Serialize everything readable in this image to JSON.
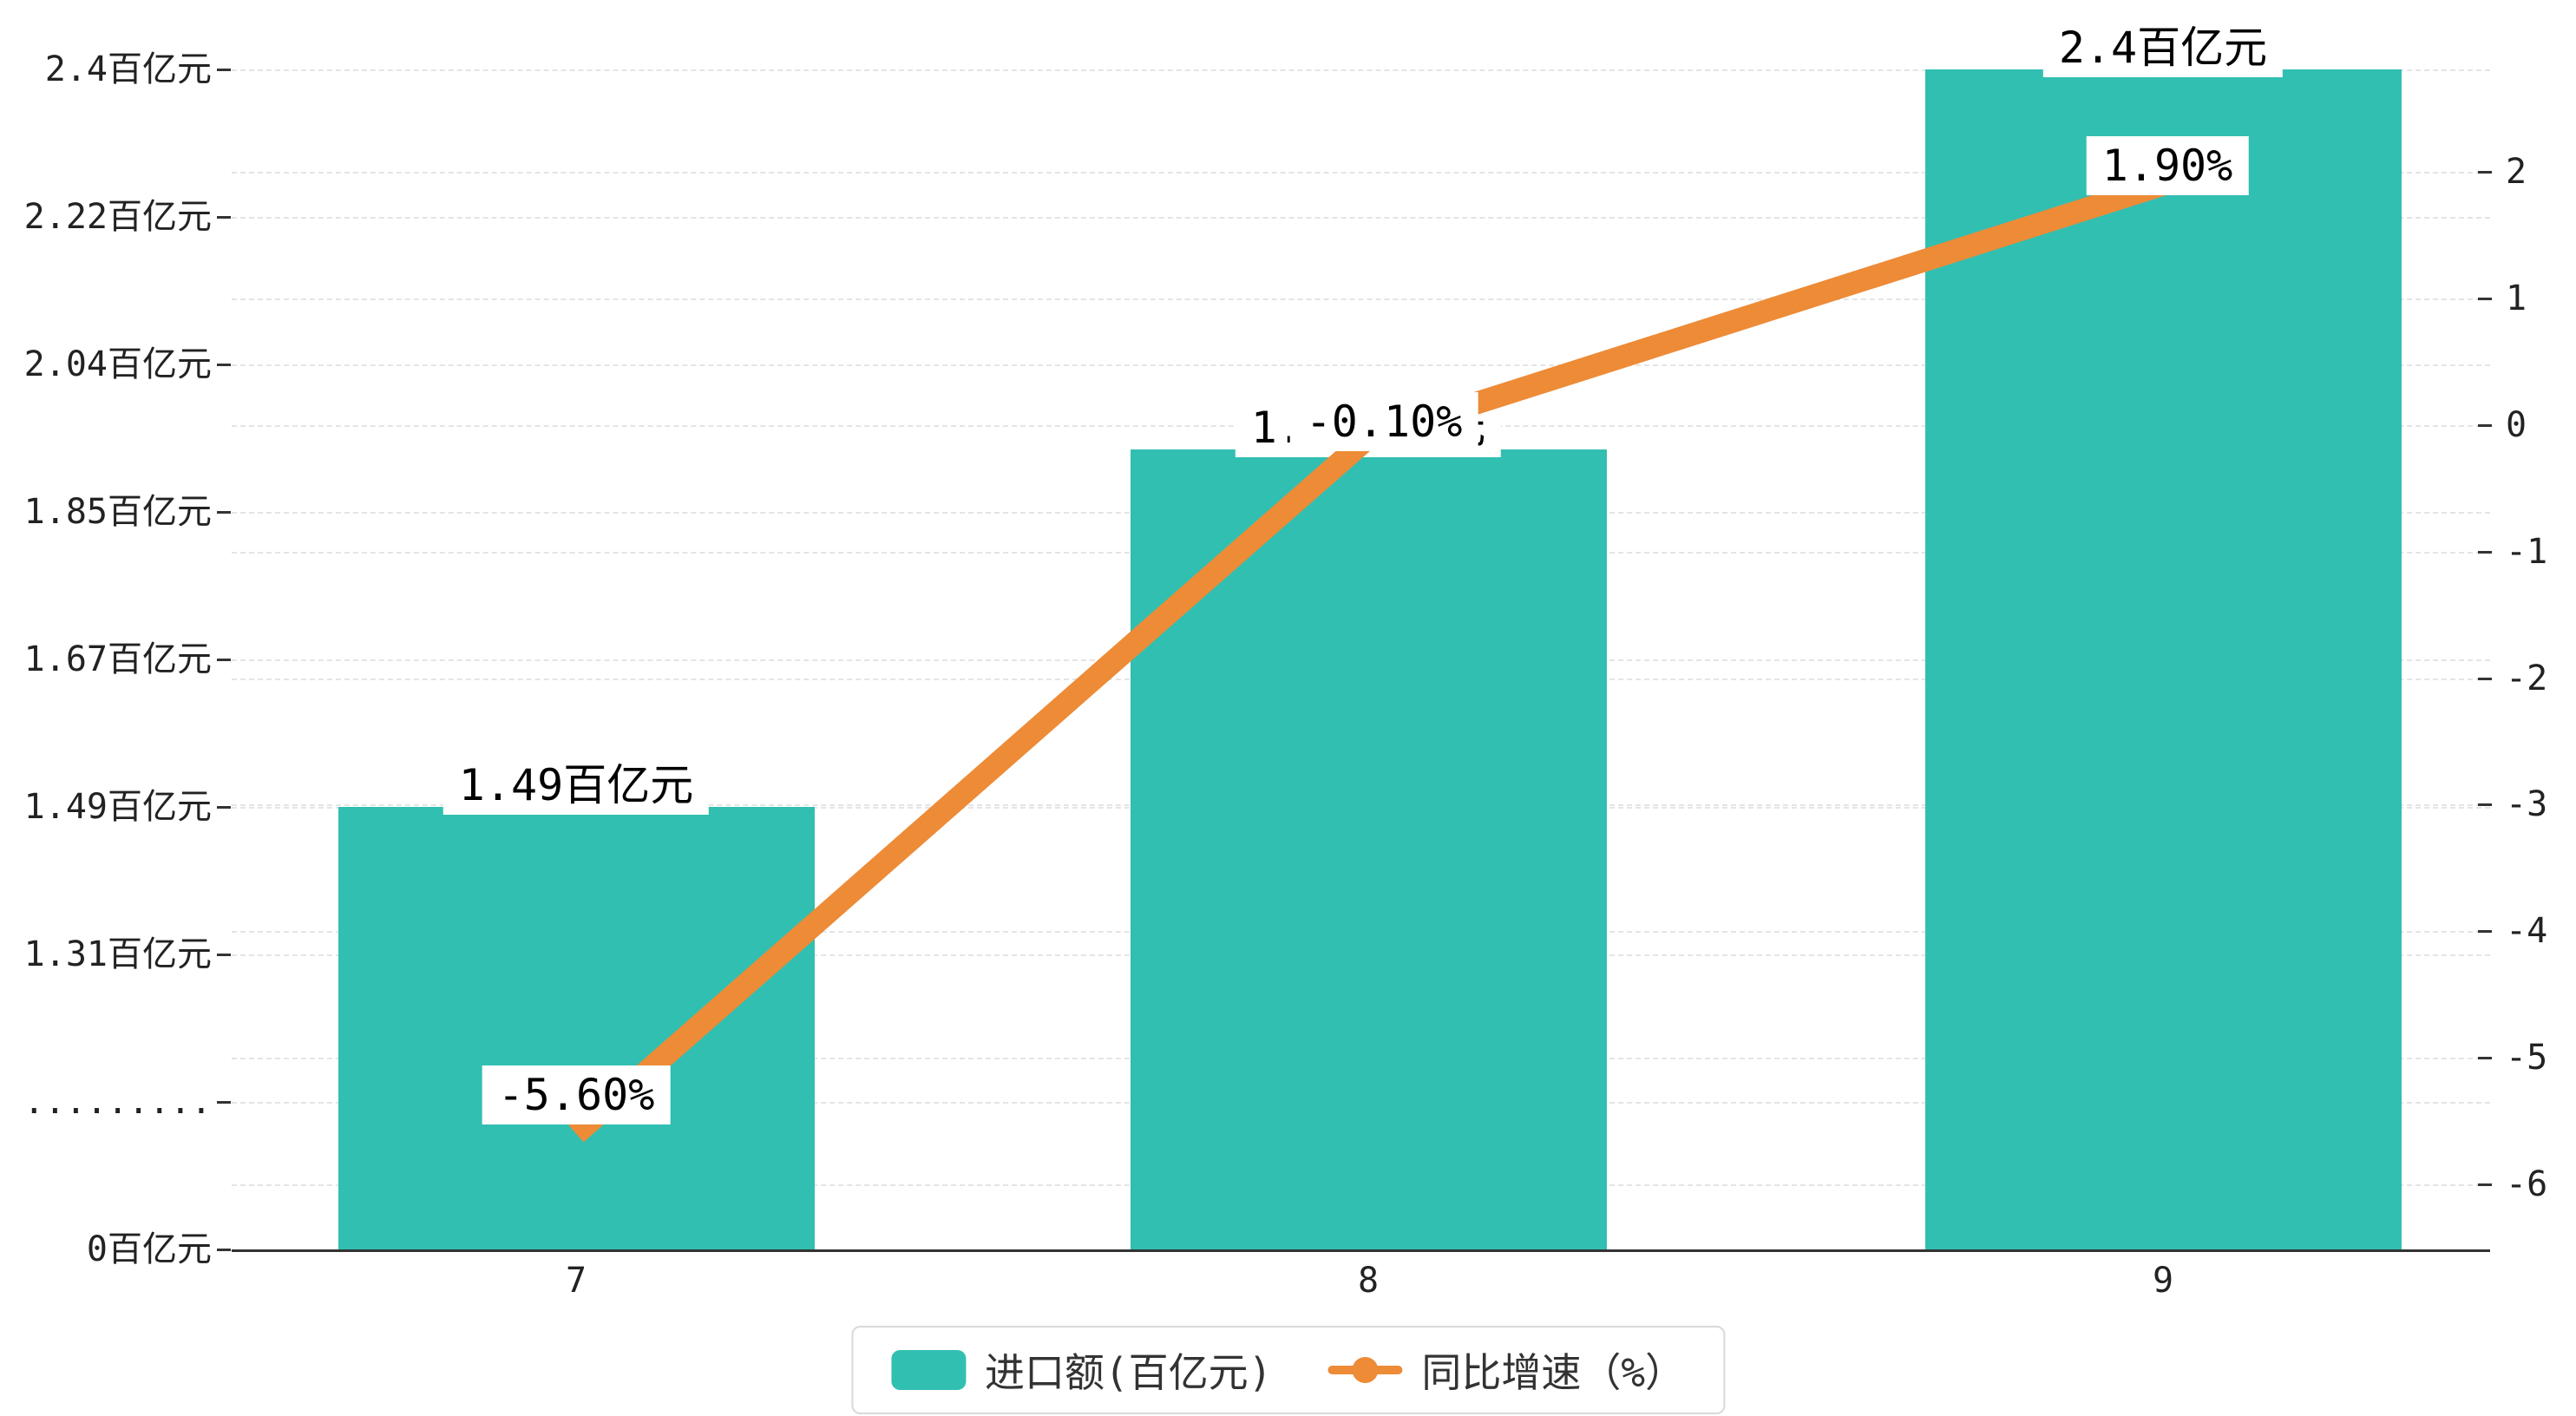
{
  "chart_data": {
    "type": "bar",
    "subtype": "bar+line-combo",
    "categories": [
      "7",
      "8",
      "9"
    ],
    "series": [
      {
        "name": "进口额(百亿元)",
        "type": "bar",
        "axis": "left",
        "color": "#31bfb1",
        "values": [
          1.49,
          1.93,
          2.4
        ],
        "data_labels": [
          "1.49百亿元",
          "1.93百亿元",
          "2.4百亿元"
        ]
      },
      {
        "name": "同比增速（%）",
        "type": "line",
        "axis": "right",
        "color": "#ed8b37",
        "values": [
          -5.6,
          -0.1,
          1.9
        ],
        "data_labels": [
          "-5.60%",
          "-0.10%",
          "1.90%"
        ]
      }
    ],
    "left_axis": {
      "tick_labels": [
        "0百亿元",
        ".........",
        "1.31百亿元",
        "1.49百亿元",
        "1.67百亿元",
        "1.85百亿元",
        "2.04百亿元",
        "2.22百亿元",
        "2.4百亿元"
      ],
      "tick_values": [
        0,
        1.13,
        1.31,
        1.49,
        1.67,
        1.85,
        2.04,
        2.22,
        2.4
      ]
    },
    "right_axis": {
      "tick_labels": [
        "2",
        "1",
        "0",
        "-1",
        "-2",
        "-3",
        "-4",
        "-5",
        "-6"
      ],
      "max": 2,
      "min": -6
    },
    "x_axis": {
      "tick_labels": [
        "7",
        "8",
        "9"
      ]
    },
    "legend": {
      "items": [
        {
          "label": "进口额(百亿元)",
          "marker": "bar-swatch",
          "color": "#31bfb1"
        },
        {
          "label": "同比增速（%）",
          "marker": "line-dot",
          "color": "#ed8b37"
        }
      ]
    },
    "colors": {
      "bar": "#31bfb1",
      "line": "#ed8b37",
      "grid": "#e4e4e4",
      "axis": "#333333",
      "label_text": "#000000",
      "label_bg": "#ffffff"
    },
    "layout_hints": {
      "grid": "horizontal-dashed",
      "legend_position": "bottom-center",
      "bar_label_position": "top",
      "line_label_position": "above-point"
    }
  }
}
